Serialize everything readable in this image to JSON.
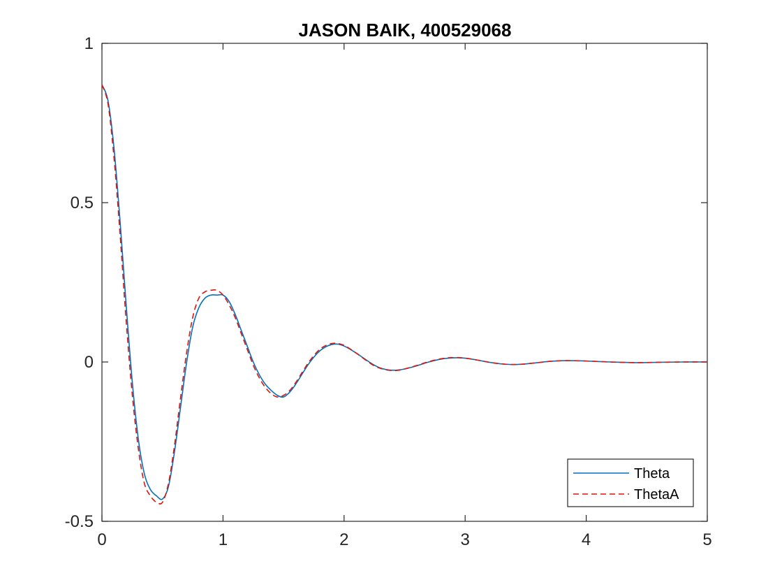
{
  "chart_data": {
    "type": "line",
    "title": "JASON BAIK, 400529068",
    "xlabel": "",
    "ylabel": "",
    "xlim": [
      0,
      5
    ],
    "ylim": [
      -0.5,
      1
    ],
    "xticks": [
      0,
      1,
      2,
      3,
      4,
      5
    ],
    "xtick_labels": [
      "0",
      "1",
      "2",
      "3",
      "4",
      "5"
    ],
    "yticks": [
      -0.5,
      0,
      0.5,
      1
    ],
    "ytick_labels": [
      "-0.5",
      "0",
      "0.5",
      "1"
    ],
    "grid": false,
    "legend_position": "bottom-right",
    "series": [
      {
        "name": "Theta",
        "color": "#0072BD",
        "style": "solid",
        "x": [
          0,
          0.05,
          0.1,
          0.15,
          0.2,
          0.25,
          0.3,
          0.35,
          0.4,
          0.45,
          0.5,
          0.55,
          0.6,
          0.65,
          0.7,
          0.75,
          0.8,
          0.85,
          0.9,
          0.95,
          1.0,
          1.05,
          1.1,
          1.15,
          1.2,
          1.25,
          1.3,
          1.35,
          1.4,
          1.45,
          1.5,
          1.55,
          1.6,
          1.65,
          1.7,
          1.75,
          1.8,
          1.85,
          1.9,
          1.95,
          2.0,
          2.05,
          2.1,
          2.15,
          2.2,
          2.25,
          2.3,
          2.35,
          2.4,
          2.45,
          2.5,
          2.6,
          2.7,
          2.8,
          2.9,
          3.0,
          3.1,
          3.2,
          3.3,
          3.4,
          3.5,
          3.6,
          3.7,
          3.8,
          3.9,
          4.0,
          4.2,
          4.4,
          4.6,
          4.8,
          5.0
        ],
        "y": [
          0.87,
          0.82,
          0.67,
          0.44,
          0.18,
          -0.06,
          -0.24,
          -0.35,
          -0.4,
          -0.42,
          -0.43,
          -0.39,
          -0.28,
          -0.14,
          0.0,
          0.11,
          0.17,
          0.2,
          0.21,
          0.21,
          0.21,
          0.19,
          0.15,
          0.1,
          0.05,
          0.0,
          -0.04,
          -0.07,
          -0.09,
          -0.105,
          -0.11,
          -0.095,
          -0.07,
          -0.04,
          -0.01,
          0.015,
          0.035,
          0.048,
          0.055,
          0.056,
          0.05,
          0.04,
          0.028,
          0.015,
          0.002,
          -0.01,
          -0.019,
          -0.024,
          -0.026,
          -0.025,
          -0.022,
          -0.012,
          0.0,
          0.009,
          0.013,
          0.012,
          0.006,
          -0.001,
          -0.006,
          -0.008,
          -0.006,
          -0.002,
          0.002,
          0.004,
          0.004,
          0.003,
          0.0,
          -0.002,
          -0.001,
          0.0,
          0.0
        ]
      },
      {
        "name": "ThetaA",
        "color": "#E3120B",
        "style": "dashed",
        "x": [
          0,
          0.05,
          0.1,
          0.15,
          0.2,
          0.25,
          0.3,
          0.35,
          0.4,
          0.45,
          0.5,
          0.55,
          0.6,
          0.65,
          0.7,
          0.75,
          0.8,
          0.85,
          0.9,
          0.95,
          1.0,
          1.05,
          1.1,
          1.15,
          1.2,
          1.25,
          1.3,
          1.35,
          1.4,
          1.45,
          1.5,
          1.55,
          1.6,
          1.65,
          1.7,
          1.75,
          1.8,
          1.85,
          1.9,
          1.95,
          2.0,
          2.05,
          2.1,
          2.15,
          2.2,
          2.25,
          2.3,
          2.35,
          2.4,
          2.45,
          2.5,
          2.6,
          2.7,
          2.8,
          2.9,
          3.0,
          3.1,
          3.2,
          3.3,
          3.4,
          3.5,
          3.6,
          3.7,
          3.8,
          3.9,
          4.0,
          4.2,
          4.4,
          4.6,
          4.8,
          5.0
        ],
        "y": [
          0.87,
          0.81,
          0.64,
          0.4,
          0.13,
          -0.1,
          -0.27,
          -0.38,
          -0.42,
          -0.44,
          -0.44,
          -0.38,
          -0.26,
          -0.11,
          0.03,
          0.14,
          0.2,
          0.22,
          0.225,
          0.225,
          0.21,
          0.18,
          0.14,
          0.09,
          0.04,
          -0.01,
          -0.05,
          -0.08,
          -0.1,
          -0.11,
          -0.105,
          -0.09,
          -0.065,
          -0.035,
          -0.005,
          0.02,
          0.04,
          0.052,
          0.058,
          0.058,
          0.052,
          0.041,
          0.028,
          0.014,
          0.0,
          -0.012,
          -0.02,
          -0.025,
          -0.027,
          -0.026,
          -0.022,
          -0.011,
          0.001,
          0.01,
          0.014,
          0.012,
          0.006,
          -0.001,
          -0.006,
          -0.008,
          -0.006,
          -0.002,
          0.002,
          0.004,
          0.004,
          0.003,
          0.0,
          -0.002,
          -0.001,
          0.0,
          0.0
        ]
      }
    ]
  }
}
